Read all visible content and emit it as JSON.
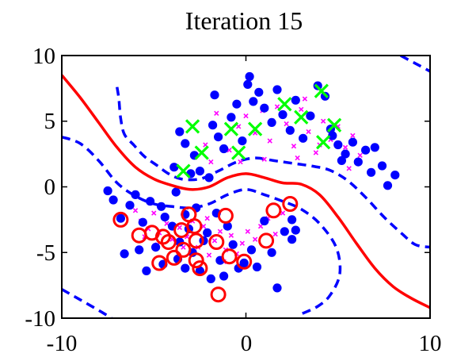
{
  "chart_data": {
    "type": "scatter",
    "title": "Iteration 15",
    "xlabel": "",
    "ylabel": "",
    "xlim": [
      -10,
      10
    ],
    "ylim": [
      -10,
      10
    ],
    "xticks": [
      "-10",
      "0",
      "10"
    ],
    "yticks": [
      "10",
      "5",
      "0",
      "-5",
      "-10"
    ],
    "grid": false,
    "legend": "none",
    "colors": {
      "unlabeled": "#0000ff",
      "candidate": "#ff00ff",
      "class_pos": "#00ff00",
      "class_neg": "#ff0000",
      "boundary": "#ff0000",
      "margin": "#0000ff"
    },
    "series": [
      {
        "role": "blue-dots",
        "points": [
          [
            -7.5,
            -0.3
          ],
          [
            -7.2,
            -1.0
          ],
          [
            -6.8,
            -2.4
          ],
          [
            -6.3,
            -1.4
          ],
          [
            -6.0,
            -0.6
          ],
          [
            -5.6,
            -2.7
          ],
          [
            -5.2,
            -1.1
          ],
          [
            -4.9,
            -4.6
          ],
          [
            -4.6,
            -1.5
          ],
          [
            -4.4,
            -2.3
          ],
          [
            -4.0,
            -3.0
          ],
          [
            -3.8,
            -0.4
          ],
          [
            -3.6,
            -4.2
          ],
          [
            -3.3,
            -2.1
          ],
          [
            -3.1,
            -3.2
          ],
          [
            -2.9,
            -5.0
          ],
          [
            -2.7,
            -1.6
          ],
          [
            -2.5,
            -6.4
          ],
          [
            -2.3,
            -4.1
          ],
          [
            -2.1,
            -3.5
          ],
          [
            -1.9,
            -7.0
          ],
          [
            -1.6,
            -2.0
          ],
          [
            -1.4,
            -5.6
          ],
          [
            -1.2,
            -6.8
          ],
          [
            -1.0,
            -3.0
          ],
          [
            -0.7,
            -4.4
          ],
          [
            -0.4,
            -6.2
          ],
          [
            -0.1,
            -5.8
          ],
          [
            0.3,
            -4.8
          ],
          [
            0.6,
            -6.1
          ],
          [
            1.0,
            -2.6
          ],
          [
            1.4,
            -5.0
          ],
          [
            1.7,
            -7.7
          ],
          [
            2.1,
            -3.4
          ],
          [
            2.5,
            -2.5
          ],
          [
            2.7,
            -3.3
          ],
          [
            2.5,
            -4.0
          ],
          [
            -6.6,
            -5.1
          ],
          [
            -5.8,
            -4.8
          ],
          [
            -5.4,
            -6.4
          ],
          [
            -4.5,
            -5.9
          ],
          [
            -3.7,
            -5.5
          ],
          [
            -3.3,
            -6.2
          ],
          [
            -3.6,
            4.2
          ],
          [
            -3.3,
            3.3
          ],
          [
            -2.8,
            2.4
          ],
          [
            -2.5,
            1.2
          ],
          [
            -2.0,
            0.7
          ],
          [
            -1.8,
            4.7
          ],
          [
            -1.5,
            3.8
          ],
          [
            -1.2,
            2.9
          ],
          [
            -0.8,
            5.3
          ],
          [
            -0.5,
            6.3
          ],
          [
            -0.2,
            3.5
          ],
          [
            0.1,
            7.8
          ],
          [
            0.4,
            6.5
          ],
          [
            0.7,
            7.2
          ],
          [
            1.0,
            6.0
          ],
          [
            1.4,
            4.9
          ],
          [
            1.7,
            7.4
          ],
          [
            2.0,
            5.5
          ],
          [
            2.4,
            4.3
          ],
          [
            2.7,
            6.6
          ],
          [
            3.1,
            3.7
          ],
          [
            3.5,
            5.4
          ],
          [
            3.9,
            7.7
          ],
          [
            4.3,
            6.9
          ],
          [
            4.6,
            4.4
          ],
          [
            5.0,
            3.2
          ],
          [
            5.4,
            2.5
          ],
          [
            5.8,
            3.4
          ],
          [
            6.1,
            1.9
          ],
          [
            6.5,
            2.8
          ],
          [
            6.8,
            1.1
          ],
          [
            7.0,
            3.0
          ],
          [
            7.4,
            1.6
          ],
          [
            7.7,
            0.1
          ],
          [
            8.1,
            0.9
          ],
          [
            -3.0,
            1.0
          ],
          [
            -3.9,
            1.5
          ],
          [
            4.7,
            3.9
          ],
          [
            5.2,
            2.0
          ],
          [
            0.2,
            8.4
          ],
          [
            -1.7,
            7.0
          ]
        ]
      },
      {
        "role": "magenta-crosses",
        "points": [
          [
            -6.0,
            -1.8
          ],
          [
            -5.7,
            -2.6
          ],
          [
            -5.3,
            -3.2
          ],
          [
            -5.0,
            -2.0
          ],
          [
            -4.7,
            -3.5
          ],
          [
            -4.3,
            -2.8
          ],
          [
            -4.0,
            -4.0
          ],
          [
            -3.6,
            -3.1
          ],
          [
            -3.2,
            -3.8
          ],
          [
            -2.9,
            -2.6
          ],
          [
            -2.6,
            -4.6
          ],
          [
            -2.3,
            -3.0
          ],
          [
            -2.0,
            -5.2
          ],
          [
            -1.7,
            -4.1
          ],
          [
            -1.4,
            -3.4
          ],
          [
            -1.1,
            -4.8
          ],
          [
            -0.8,
            -3.7
          ],
          [
            -0.5,
            -5.1
          ],
          [
            -0.2,
            -4.3
          ],
          [
            0.1,
            -3.4
          ],
          [
            0.5,
            -4.0
          ],
          [
            0.8,
            -3.0
          ],
          [
            1.2,
            -2.4
          ],
          [
            1.6,
            -3.6
          ],
          [
            2.0,
            -2.0
          ],
          [
            -5.5,
            -3.8
          ],
          [
            -4.8,
            -4.4
          ],
          [
            -3.4,
            -4.6
          ],
          [
            -2.1,
            -2.4
          ],
          [
            -1.2,
            -5.7
          ],
          [
            -0.9,
            2.8
          ],
          [
            -0.4,
            4.6
          ],
          [
            0.0,
            5.4
          ],
          [
            0.5,
            4.1
          ],
          [
            0.9,
            5.8
          ],
          [
            1.3,
            3.5
          ],
          [
            1.7,
            6.1
          ],
          [
            2.2,
            4.8
          ],
          [
            2.6,
            3.1
          ],
          [
            3.0,
            5.9
          ],
          [
            3.4,
            4.2
          ],
          [
            3.8,
            2.6
          ],
          [
            4.2,
            5.0
          ],
          [
            4.6,
            3.6
          ],
          [
            5.0,
            4.6
          ],
          [
            5.4,
            3.0
          ],
          [
            5.8,
            3.9
          ],
          [
            6.2,
            2.4
          ],
          [
            -1.6,
            5.6
          ],
          [
            -2.2,
            3.2
          ],
          [
            -1.9,
            1.9
          ],
          [
            1.0,
            2.1
          ],
          [
            3.2,
            6.7
          ],
          [
            4.0,
            3.2
          ],
          [
            5.6,
            1.4
          ],
          [
            -0.3,
            1.9
          ],
          [
            2.8,
            2.2
          ]
        ]
      },
      {
        "role": "green-x-labeled",
        "points": [
          [
            -3.4,
            1.2
          ],
          [
            -2.9,
            4.6
          ],
          [
            -2.4,
            2.6
          ],
          [
            -0.8,
            4.4
          ],
          [
            -0.4,
            2.6
          ],
          [
            0.5,
            4.4
          ],
          [
            2.1,
            6.3
          ],
          [
            3.0,
            5.3
          ],
          [
            4.1,
            7.3
          ],
          [
            4.2,
            3.4
          ],
          [
            4.8,
            4.7
          ]
        ]
      },
      {
        "role": "red-circle-labeled",
        "points": [
          [
            -6.8,
            -2.5
          ],
          [
            -5.8,
            -3.7
          ],
          [
            -5.1,
            -3.5
          ],
          [
            -4.5,
            -3.8
          ],
          [
            -4.7,
            -5.8
          ],
          [
            -4.2,
            -4.2
          ],
          [
            -3.9,
            -5.4
          ],
          [
            -3.5,
            -3.3
          ],
          [
            -3.4,
            -4.8
          ],
          [
            -3.1,
            -2.1
          ],
          [
            -2.8,
            -3.0
          ],
          [
            -2.7,
            -4.1
          ],
          [
            -2.7,
            -5.6
          ],
          [
            -2.5,
            -6.2
          ],
          [
            -1.6,
            -4.2
          ],
          [
            -1.1,
            -2.2
          ],
          [
            -0.9,
            -5.3
          ],
          [
            -0.1,
            -5.7
          ],
          [
            1.1,
            -4.1
          ],
          [
            1.5,
            -1.8
          ],
          [
            2.4,
            -1.3
          ],
          [
            -1.5,
            -8.2
          ]
        ]
      },
      {
        "role": "decision-boundary",
        "points": [
          [
            -10,
            8.5
          ],
          [
            -9,
            6.8
          ],
          [
            -8,
            4.9
          ],
          [
            -7,
            3.0
          ],
          [
            -6,
            1.5
          ],
          [
            -5,
            0.6
          ],
          [
            -4,
            0.1
          ],
          [
            -3,
            -0.2
          ],
          [
            -2,
            0.0
          ],
          [
            -1,
            0.7
          ],
          [
            0,
            1.0
          ],
          [
            1,
            0.7
          ],
          [
            2,
            0.3
          ],
          [
            3,
            0.2
          ],
          [
            4,
            -0.6
          ],
          [
            5,
            -2.3
          ],
          [
            6,
            -4.3
          ],
          [
            7,
            -6.2
          ],
          [
            8,
            -7.6
          ],
          [
            9,
            -8.5
          ],
          [
            10,
            -9.2
          ]
        ]
      },
      {
        "role": "margin-upper",
        "points": [
          [
            -7.0,
            7.6
          ],
          [
            -6.9,
            6.7
          ],
          [
            -6.8,
            5.2
          ],
          [
            -6.6,
            4.0
          ],
          [
            -6.1,
            3.2
          ],
          [
            -5.5,
            2.3
          ],
          [
            -4.8,
            1.6
          ],
          [
            -4.2,
            1.0
          ],
          [
            -3.5,
            0.6
          ],
          [
            -2.5,
            0.6
          ],
          [
            -1.5,
            1.2
          ],
          [
            -0.5,
            1.9
          ],
          [
            0.5,
            2.2
          ],
          [
            1.5,
            2.0
          ],
          [
            2.5,
            1.8
          ],
          [
            3.5,
            1.6
          ],
          [
            4.5,
            1.3
          ],
          [
            5.5,
            0.5
          ],
          [
            6.5,
            -0.8
          ],
          [
            7.5,
            -2.3
          ],
          [
            8.5,
            -3.6
          ],
          [
            9.2,
            -4.4
          ],
          [
            10.0,
            -4.6
          ]
        ]
      },
      {
        "role": "margin-lower",
        "points": [
          [
            -10,
            3.8
          ],
          [
            -9,
            3.3
          ],
          [
            -8,
            2.0
          ],
          [
            -7,
            0.3
          ],
          [
            -6,
            -0.7
          ],
          [
            -5,
            -1.3
          ],
          [
            -4,
            -1.5
          ],
          [
            -3,
            -1.6
          ],
          [
            -2,
            -1.3
          ],
          [
            -1,
            -0.6
          ],
          [
            0,
            -0.2
          ],
          [
            1,
            -0.6
          ],
          [
            2,
            -1.1
          ],
          [
            3,
            -1.7
          ],
          [
            4,
            -2.8
          ],
          [
            4.9,
            -4.6
          ],
          [
            5.1,
            -6.6
          ],
          [
            4.6,
            -8.2
          ],
          [
            3.9,
            -9.1
          ],
          [
            2.8,
            -9.8
          ]
        ]
      },
      {
        "role": "margin-top-right-corner",
        "points": [
          [
            8.4,
            10.0
          ],
          [
            9.2,
            9.4
          ],
          [
            10.0,
            8.8
          ]
        ]
      },
      {
        "role": "margin-bottom-left-corner",
        "points": [
          [
            -10,
            -7.8
          ],
          [
            -9.0,
            -8.6
          ],
          [
            -8.0,
            -9.4
          ],
          [
            -7.3,
            -10.0
          ]
        ]
      }
    ]
  }
}
